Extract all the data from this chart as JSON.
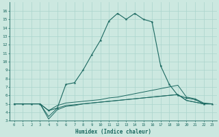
{
  "xlabel": "Humidex (Indice chaleur)",
  "bg_color": "#cce8e0",
  "grid_color": "#aad4cc",
  "line_color": "#1a6860",
  "xlim": [
    -0.5,
    23.5
  ],
  "ylim": [
    3,
    17
  ],
  "xticks": [
    0,
    1,
    2,
    3,
    4,
    5,
    6,
    7,
    8,
    9,
    10,
    11,
    12,
    13,
    14,
    15,
    16,
    17,
    18,
    19,
    20,
    21,
    22,
    23
  ],
  "yticks": [
    3,
    4,
    5,
    6,
    7,
    8,
    9,
    10,
    11,
    12,
    13,
    14,
    15,
    16
  ],
  "line1_x": [
    0,
    1,
    2,
    3,
    4,
    5,
    6,
    7,
    8,
    9,
    10,
    11,
    12,
    13,
    14,
    15,
    16,
    17,
    18,
    19,
    20,
    21,
    22,
    23
  ],
  "line1_y": [
    5.0,
    5.0,
    5.0,
    5.0,
    4.2,
    4.5,
    7.3,
    7.5,
    9.0,
    10.8,
    12.5,
    14.8,
    15.7,
    15.0,
    15.7,
    15.0,
    14.7,
    9.5,
    7.3,
    6.0,
    5.7,
    5.5,
    5.0,
    5.0
  ],
  "line2_x": [
    0,
    1,
    2,
    3,
    4,
    5,
    6,
    7,
    8,
    9,
    10,
    11,
    12,
    13,
    14,
    15,
    16,
    17,
    18,
    19,
    20,
    21,
    22,
    23
  ],
  "line2_y": [
    5.0,
    5.0,
    5.0,
    5.0,
    4.2,
    4.8,
    5.1,
    5.2,
    5.3,
    5.4,
    5.5,
    5.7,
    5.8,
    6.0,
    6.2,
    6.4,
    6.6,
    6.8,
    7.0,
    7.2,
    5.8,
    5.6,
    5.1,
    5.0
  ],
  "line3_x": [
    0,
    1,
    2,
    3,
    4,
    5,
    6,
    7,
    8,
    9,
    10,
    11,
    12,
    13,
    14,
    15,
    16,
    17,
    18,
    19,
    20,
    21,
    22,
    23
  ],
  "line3_y": [
    5.0,
    5.0,
    5.0,
    5.0,
    3.2,
    4.3,
    4.7,
    4.8,
    5.0,
    5.1,
    5.2,
    5.3,
    5.4,
    5.5,
    5.6,
    5.7,
    5.8,
    5.9,
    6.0,
    6.1,
    5.4,
    5.2,
    5.0,
    5.0
  ],
  "line4_x": [
    0,
    1,
    2,
    3,
    4,
    5,
    6,
    7,
    8,
    9,
    10,
    11,
    12,
    13,
    14,
    15,
    16,
    17,
    18,
    19,
    20,
    21,
    22,
    23
  ],
  "line4_y": [
    5.0,
    5.0,
    5.0,
    5.0,
    3.5,
    4.5,
    4.8,
    4.9,
    5.0,
    5.1,
    5.2,
    5.3,
    5.4,
    5.5,
    5.6,
    5.7,
    5.8,
    5.9,
    6.0,
    6.1,
    5.4,
    5.2,
    5.0,
    5.0
  ]
}
